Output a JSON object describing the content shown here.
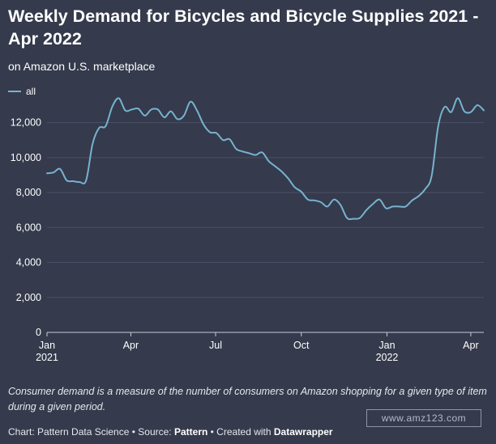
{
  "title": "Weekly Demand for Bicycles and Bicycle Supplies 2021 -  Apr 2022",
  "subtitle": "on Amazon U.S. marketplace",
  "note": "Consumer demand is a measure of the number of consumers on Amazon shopping for a given type of item during a given period.",
  "footer": {
    "chart_prefix": "Chart: Pattern Data Science • Source: ",
    "source": "Pattern",
    "created_prefix": " • Created with ",
    "tool": "Datawrapper"
  },
  "watermark": "www.amz123.com",
  "colors": {
    "background": "#353a4c",
    "line": "#76b3cf",
    "grid": "#4b5166"
  },
  "chart_data": {
    "type": "line",
    "title": "Weekly Demand for Bicycles and Bicycle Supplies 2021 -  Apr 2022",
    "subtitle": "on Amazon U.S. marketplace",
    "ylim": [
      0,
      13000
    ],
    "y_ticks": [
      0,
      2000,
      4000,
      6000,
      8000,
      10000,
      12000
    ],
    "y_tick_labels": [
      "0",
      "2,000",
      "4,000",
      "6,000",
      "8,000",
      "10,000",
      "12,000"
    ],
    "x_ticks": [
      {
        "month": "Jan",
        "year": "2021",
        "date": "2021-01"
      },
      {
        "month": "Apr",
        "year": "",
        "date": "2021-04"
      },
      {
        "month": "Jul",
        "year": "",
        "date": "2021-07"
      },
      {
        "month": "Oct",
        "year": "",
        "date": "2021-10"
      },
      {
        "month": "Jan",
        "year": "2022",
        "date": "2022-01"
      },
      {
        "month": "Apr",
        "year": "",
        "date": "2022-04"
      }
    ],
    "grid": true,
    "legend": "top-left",
    "series": [
      {
        "name": "all",
        "color": "#76b3cf",
        "x": [
          "2021-01-01",
          "2021-01-08",
          "2021-01-15",
          "2021-01-22",
          "2021-01-29",
          "2021-02-05",
          "2021-02-12",
          "2021-02-19",
          "2021-02-26",
          "2021-03-05",
          "2021-03-12",
          "2021-03-19",
          "2021-03-26",
          "2021-04-02",
          "2021-04-09",
          "2021-04-16",
          "2021-04-23",
          "2021-04-30",
          "2021-05-07",
          "2021-05-14",
          "2021-05-21",
          "2021-05-28",
          "2021-06-04",
          "2021-06-11",
          "2021-06-18",
          "2021-06-25",
          "2021-07-02",
          "2021-07-09",
          "2021-07-16",
          "2021-07-23",
          "2021-07-30",
          "2021-08-06",
          "2021-08-13",
          "2021-08-20",
          "2021-08-27",
          "2021-09-03",
          "2021-09-10",
          "2021-09-17",
          "2021-09-24",
          "2021-10-01",
          "2021-10-08",
          "2021-10-15",
          "2021-10-22",
          "2021-10-29",
          "2021-11-05",
          "2021-11-12",
          "2021-11-19",
          "2021-11-26",
          "2021-12-03",
          "2021-12-10",
          "2021-12-17",
          "2021-12-24",
          "2021-12-31",
          "2022-01-07",
          "2022-01-14",
          "2022-01-21",
          "2022-01-28",
          "2022-02-04",
          "2022-02-11",
          "2022-02-18",
          "2022-02-25",
          "2022-03-04",
          "2022-03-11",
          "2022-03-18",
          "2022-03-25",
          "2022-04-01",
          "2022-04-08",
          "2022-04-15"
        ],
        "y": [
          9100,
          9150,
          9350,
          8700,
          8650,
          8600,
          8700,
          10800,
          11700,
          11800,
          12900,
          13400,
          12700,
          12750,
          12800,
          12400,
          12750,
          12750,
          12300,
          12650,
          12200,
          12400,
          13200,
          12700,
          11900,
          11450,
          11400,
          11000,
          11050,
          10500,
          10350,
          10250,
          10150,
          10300,
          9800,
          9500,
          9200,
          8800,
          8300,
          8050,
          7600,
          7550,
          7450,
          7200,
          7600,
          7300,
          6550,
          6500,
          6550,
          7000,
          7350,
          7600,
          7100,
          7200,
          7200,
          7200,
          7550,
          7800,
          8200,
          8950,
          11800,
          12900,
          12600,
          13400,
          12650,
          12600,
          13000,
          12700
        ]
      }
    ]
  }
}
